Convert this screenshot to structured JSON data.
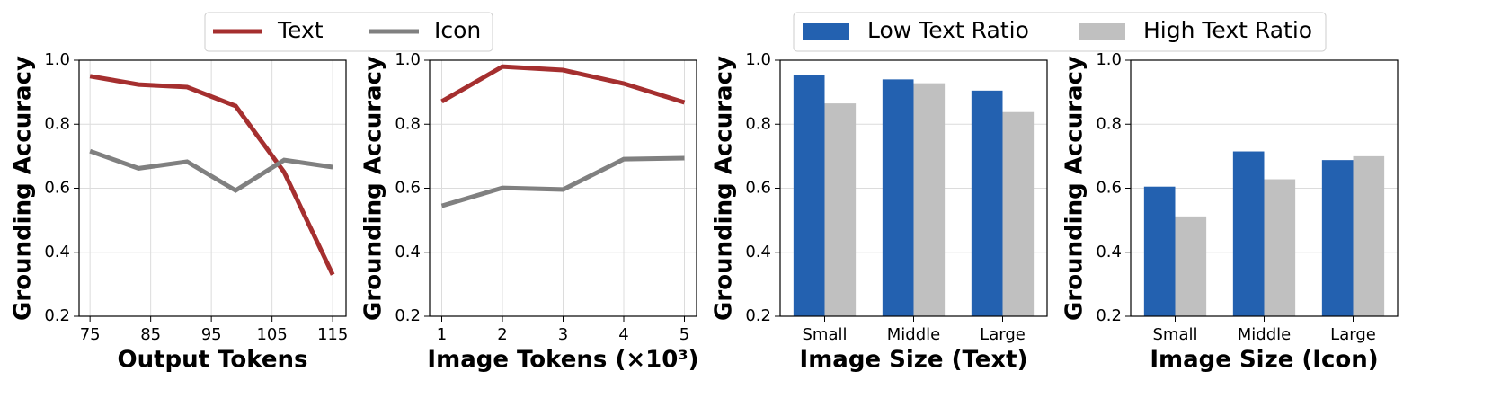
{
  "chart_data": [
    {
      "type": "line",
      "xlabel": "Output Tokens",
      "ylabel": "Grounding Accuracy",
      "x": [
        75,
        83,
        91,
        99,
        107,
        115
      ],
      "series": [
        {
          "name": "Text",
          "color": "#a52f2f",
          "values": [
            0.95,
            0.924,
            0.916,
            0.857,
            0.65,
            0.33
          ]
        },
        {
          "name": "Icon",
          "color": "#808080",
          "values": [
            0.716,
            0.662,
            0.683,
            0.593,
            0.688,
            0.666
          ]
        }
      ],
      "xlim": [
        73.2,
        117.2
      ],
      "xticks": [
        75,
        85,
        95,
        105,
        115
      ],
      "ylim": [
        0.2,
        1.0
      ],
      "yticks": [
        0.2,
        0.4,
        0.6,
        0.8,
        {
          "value": 1.0,
          "label": "1.0"
        }
      ],
      "grid": true
    },
    {
      "type": "line",
      "xlabel": "Image Tokens (×10³)",
      "ylabel": "Grounding Accuracy",
      "x": [
        1,
        2,
        3,
        4,
        5
      ],
      "series": [
        {
          "color": "#a52f2f",
          "values": [
            0.871,
            0.98,
            0.969,
            0.927,
            0.868
          ]
        },
        {
          "color": "#808080",
          "values": [
            0.545,
            0.601,
            0.596,
            0.691,
            0.694
          ]
        }
      ],
      "xlim": [
        0.8,
        5.2
      ],
      "xticks": [
        1,
        2,
        3,
        4,
        5
      ],
      "ylim": [
        0.2,
        1.0
      ],
      "yticks": [
        0.2,
        0.4,
        0.6,
        0.8,
        {
          "value": 1.0,
          "label": "1.0"
        }
      ],
      "grid": true
    },
    {
      "type": "bar",
      "xlabel": "Image Size (Text)",
      "ylabel": "Grounding Accuracy",
      "categories": [
        "Small",
        "Middle",
        "Large"
      ],
      "series": [
        {
          "name": "Low Text Ratio",
          "color": "#2361b0",
          "values": [
            0.955,
            0.94,
            0.905
          ]
        },
        {
          "name": "High Text Ratio",
          "color": "#c0c0c0",
          "values": [
            0.865,
            0.928,
            0.838
          ]
        }
      ],
      "ylim": [
        0.2,
        1.0
      ],
      "yticks": [
        0.2,
        0.4,
        0.6,
        0.8,
        {
          "value": 1.0,
          "label": "1.0"
        }
      ],
      "grid": true
    },
    {
      "type": "bar",
      "xlabel": "Image Size (Icon)",
      "ylabel": "Grounding Accuracy",
      "categories": [
        "Small",
        "Middle",
        "Large"
      ],
      "series": [
        {
          "color": "#2361b0",
          "values": [
            0.605,
            0.715,
            0.688
          ]
        },
        {
          "color": "#c0c0c0",
          "values": [
            0.512,
            0.628,
            0.7
          ]
        }
      ],
      "ylim": [
        0.2,
        1.0
      ],
      "yticks": [
        0.2,
        0.4,
        0.6,
        0.8,
        {
          "value": 1.0,
          "label": "1.0"
        }
      ],
      "grid": true
    }
  ]
}
